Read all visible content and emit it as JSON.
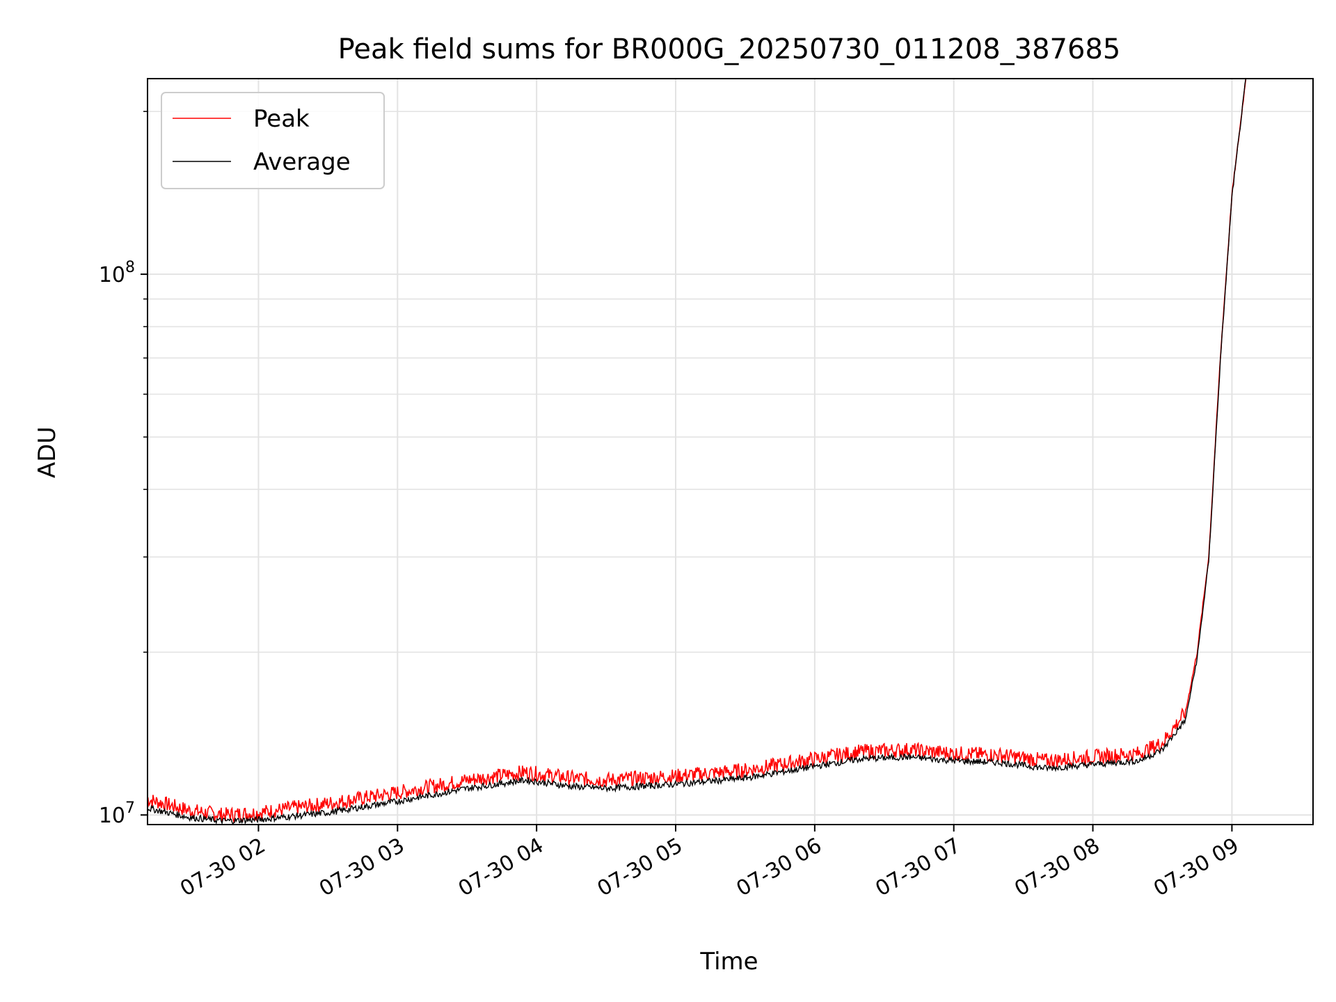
{
  "chart_data": {
    "type": "line",
    "title": "Peak field sums for BR000G_20250730_011208_387685",
    "xlabel": "Time",
    "ylabel": "ADU",
    "yscale": "log",
    "xlim": [
      "2025-07-30T01:12:08",
      "2025-07-30T09:35:00"
    ],
    "ylim": [
      9600000,
      230000000
    ],
    "grid": true,
    "legend_position": "top-left",
    "x_ticks": [
      "07-30 02",
      "07-30 03",
      "07-30 04",
      "07-30 05",
      "07-30 06",
      "07-30 07",
      "07-30 08",
      "07-30 09"
    ],
    "y_ticks": [
      {
        "value": 10000000,
        "base": "10",
        "exp": "7"
      },
      {
        "value": 100000000,
        "base": "10",
        "exp": "8"
      }
    ],
    "series": [
      {
        "name": "Peak",
        "color": "#ff0000",
        "x": [
          "2025-07-30T01:12",
          "2025-07-30T01:30",
          "2025-07-30T01:45",
          "2025-07-30T02:00",
          "2025-07-30T02:30",
          "2025-07-30T03:00",
          "2025-07-30T03:30",
          "2025-07-30T03:55",
          "2025-07-30T04:15",
          "2025-07-30T04:30",
          "2025-07-30T05:00",
          "2025-07-30T05:30",
          "2025-07-30T06:00",
          "2025-07-30T06:20",
          "2025-07-30T06:40",
          "2025-07-30T07:00",
          "2025-07-30T07:20",
          "2025-07-30T07:40",
          "2025-07-30T08:00",
          "2025-07-30T08:20",
          "2025-07-30T08:30",
          "2025-07-30T08:40",
          "2025-07-30T08:45",
          "2025-07-30T08:50",
          "2025-07-30T08:55",
          "2025-07-30T09:00",
          "2025-07-30T09:06"
        ],
        "y": [
          10700000,
          10200000,
          10000000,
          10100000,
          10500000,
          11000000,
          11600000,
          12000000,
          11700000,
          11600000,
          11800000,
          12100000,
          12700000,
          13100000,
          13200000,
          13000000,
          12900000,
          12600000,
          12800000,
          13000000,
          13600000,
          15500000,
          20000000,
          30000000,
          70000000,
          140000000,
          230000000
        ]
      },
      {
        "name": "Average",
        "color": "#000000",
        "x": [
          "2025-07-30T01:12",
          "2025-07-30T01:30",
          "2025-07-30T01:45",
          "2025-07-30T02:00",
          "2025-07-30T02:30",
          "2025-07-30T03:00",
          "2025-07-30T03:30",
          "2025-07-30T03:55",
          "2025-07-30T04:15",
          "2025-07-30T04:30",
          "2025-07-30T05:00",
          "2025-07-30T05:30",
          "2025-07-30T06:00",
          "2025-07-30T06:20",
          "2025-07-30T06:40",
          "2025-07-30T07:00",
          "2025-07-30T07:20",
          "2025-07-30T07:40",
          "2025-07-30T08:00",
          "2025-07-30T08:20",
          "2025-07-30T08:30",
          "2025-07-30T08:40",
          "2025-07-30T08:45",
          "2025-07-30T08:50",
          "2025-07-30T08:55",
          "2025-07-30T09:00",
          "2025-07-30T09:06"
        ],
        "y": [
          10300000,
          9900000,
          9750000,
          9800000,
          10100000,
          10600000,
          11200000,
          11600000,
          11300000,
          11200000,
          11400000,
          11700000,
          12300000,
          12700000,
          12800000,
          12600000,
          12500000,
          12200000,
          12400000,
          12600000,
          13200000,
          15000000,
          19500000,
          29500000,
          69000000,
          139000000,
          230000000
        ]
      }
    ]
  }
}
